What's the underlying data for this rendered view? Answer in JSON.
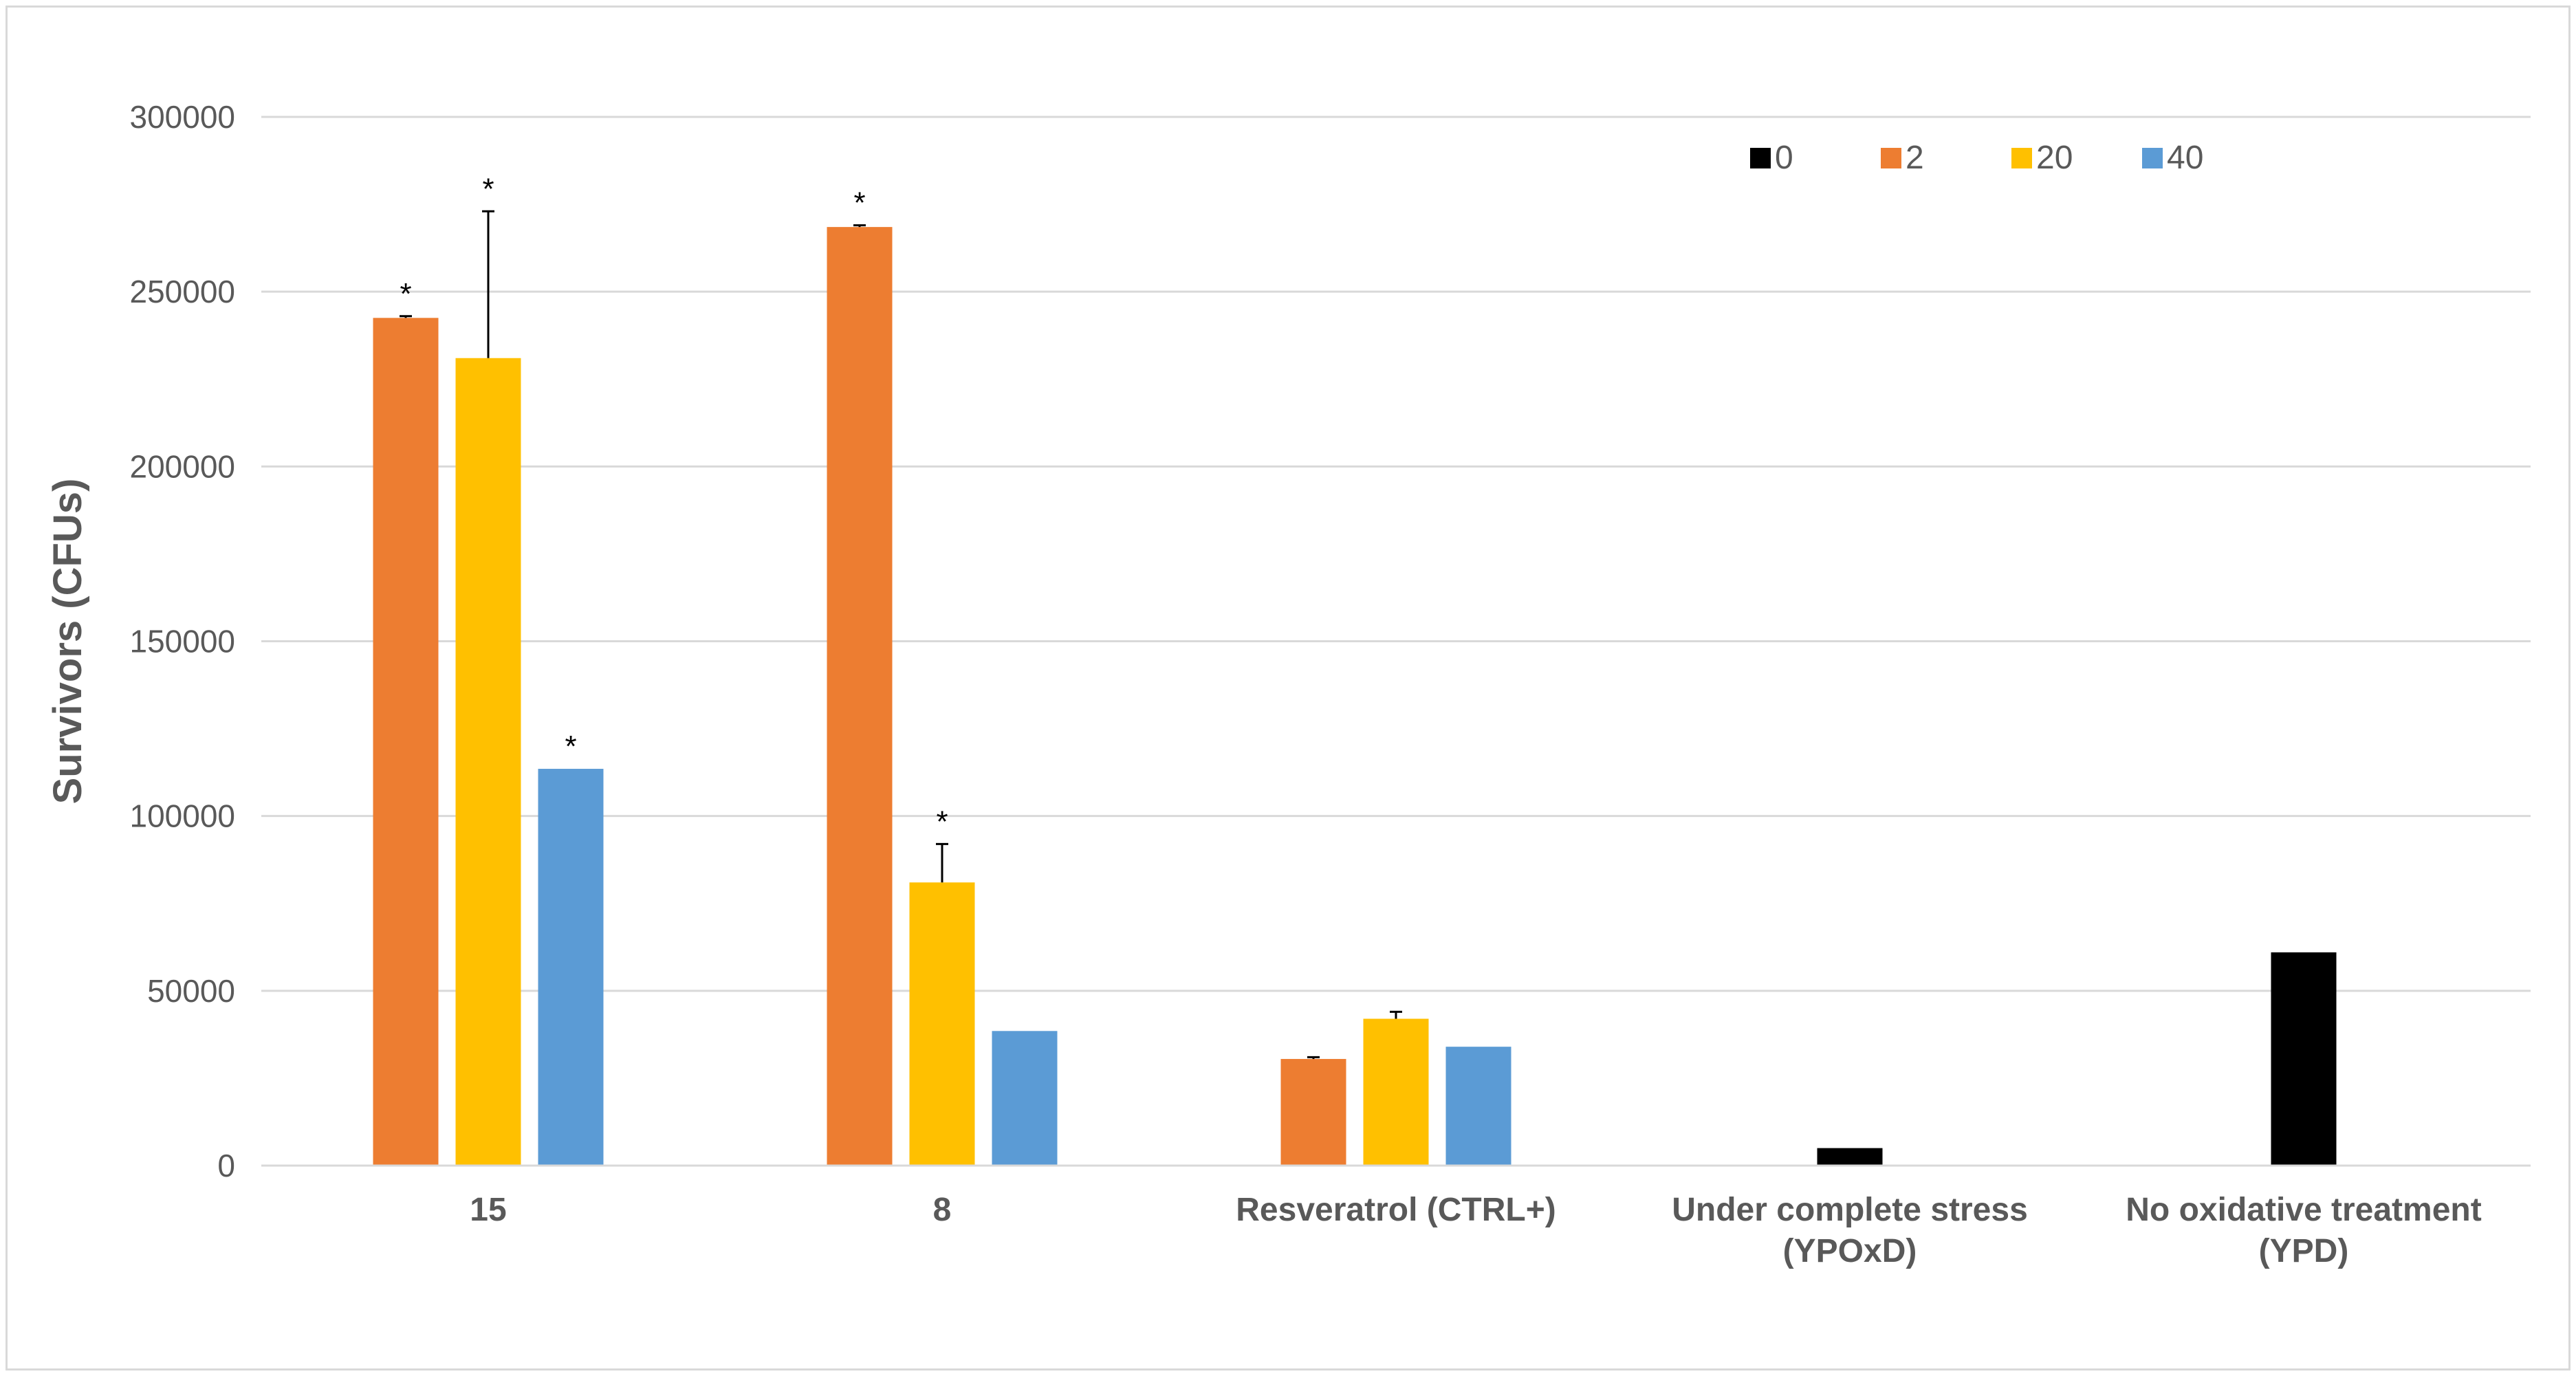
{
  "chart_data": {
    "type": "bar",
    "title": "",
    "xlabel": "",
    "ylabel": "Survivors (CFUs)",
    "ylim": [
      0,
      300000
    ],
    "yticks": [
      "0",
      "50000",
      "100000",
      "150000",
      "200000",
      "250000",
      "300000"
    ],
    "grid": true,
    "legend_position": "top-right",
    "categories": [
      [
        "15"
      ],
      [
        "8"
      ],
      [
        "Resveratrol (CTRL+)"
      ],
      [
        "Under complete stress",
        "(YPOxD)"
      ],
      [
        "No oxidative treatment",
        "(YPD)"
      ]
    ],
    "series": [
      {
        "name": "0",
        "color": "#000000",
        "values": [
          null,
          null,
          null,
          5000,
          61000
        ],
        "errors": [
          null,
          null,
          null,
          null,
          null
        ],
        "significant": [
          false,
          false,
          false,
          false,
          false
        ]
      },
      {
        "name": "2",
        "color": "#ED7D31",
        "values": [
          242500,
          268500,
          30500,
          null,
          null
        ],
        "errors": [
          500,
          500,
          500,
          null,
          null
        ],
        "significant": [
          true,
          true,
          false,
          false,
          false
        ]
      },
      {
        "name": "20",
        "color": "#FFC000",
        "values": [
          231000,
          81000,
          42000,
          null,
          null
        ],
        "errors": [
          42000,
          11000,
          2000,
          null,
          null
        ],
        "significant": [
          true,
          true,
          false,
          false,
          false
        ]
      },
      {
        "name": "40",
        "color": "#5B9BD5",
        "values": [
          113500,
          38500,
          34000,
          null,
          null
        ],
        "errors": [
          null,
          null,
          null,
          null,
          null
        ],
        "significant": [
          true,
          false,
          false,
          false,
          false
        ]
      }
    ],
    "annotation_symbol": "*"
  }
}
